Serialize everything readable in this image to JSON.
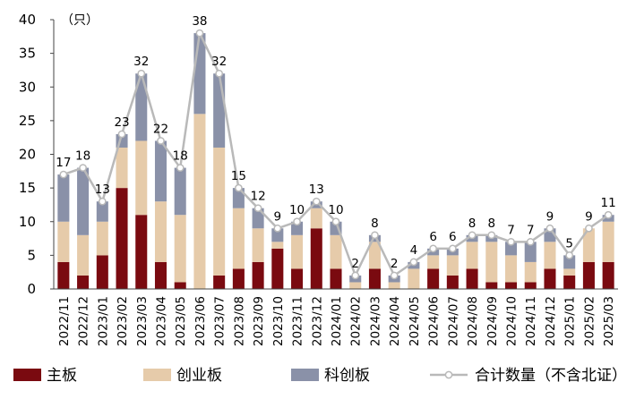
{
  "chart_data": {
    "type": "bar",
    "stacked": true,
    "unit_label": "（只）",
    "categories": [
      "2022/11",
      "2022/12",
      "2023/01",
      "2023/02",
      "2023/03",
      "2023/04",
      "2023/05",
      "2023/06",
      "2023/07",
      "2023/08",
      "2023/09",
      "2023/10",
      "2023/11",
      "2023/12",
      "2024/01",
      "2024/02",
      "2024/03",
      "2024/04",
      "2024/05",
      "2024/06",
      "2024/07",
      "2024/08",
      "2024/09",
      "2024/10",
      "2024/11",
      "2024/12",
      "2025/01",
      "2025/02",
      "2025/03"
    ],
    "series": [
      {
        "name": "主板",
        "color": "#7a0a10",
        "values": [
          4,
          2,
          5,
          15,
          11,
          4,
          1,
          0,
          2,
          3,
          4,
          6,
          3,
          9,
          3,
          0,
          3,
          0,
          0,
          3,
          2,
          3,
          1,
          1,
          1,
          3,
          2,
          4,
          4
        ]
      },
      {
        "name": "创业板",
        "color": "#e6cbaa",
        "values": [
          6,
          6,
          5,
          6,
          11,
          9,
          10,
          26,
          19,
          9,
          5,
          1,
          5,
          3,
          5,
          1,
          4,
          1,
          3,
          2,
          3,
          4,
          6,
          4,
          3,
          4,
          1,
          5,
          6
        ]
      },
      {
        "name": "科创板",
        "color": "#8a91a8",
        "values": [
          7,
          10,
          3,
          2,
          10,
          9,
          7,
          12,
          11,
          3,
          3,
          2,
          2,
          1,
          2,
          1,
          1,
          1,
          1,
          1,
          1,
          1,
          1,
          2,
          3,
          2,
          2,
          0,
          1
        ]
      }
    ],
    "line": {
      "name": "合计数量（不含北证）",
      "color": "#b9b9b9",
      "values": [
        17,
        18,
        13,
        23,
        32,
        22,
        18,
        38,
        32,
        15,
        12,
        9,
        10,
        13,
        10,
        2,
        8,
        2,
        4,
        6,
        6,
        8,
        8,
        7,
        7,
        9,
        5,
        9,
        11
      ]
    },
    "ylim": [
      0,
      40
    ],
    "yticks": [
      0,
      5,
      10,
      15,
      20,
      25,
      30,
      35,
      40
    ],
    "legend_position": "bottom"
  }
}
